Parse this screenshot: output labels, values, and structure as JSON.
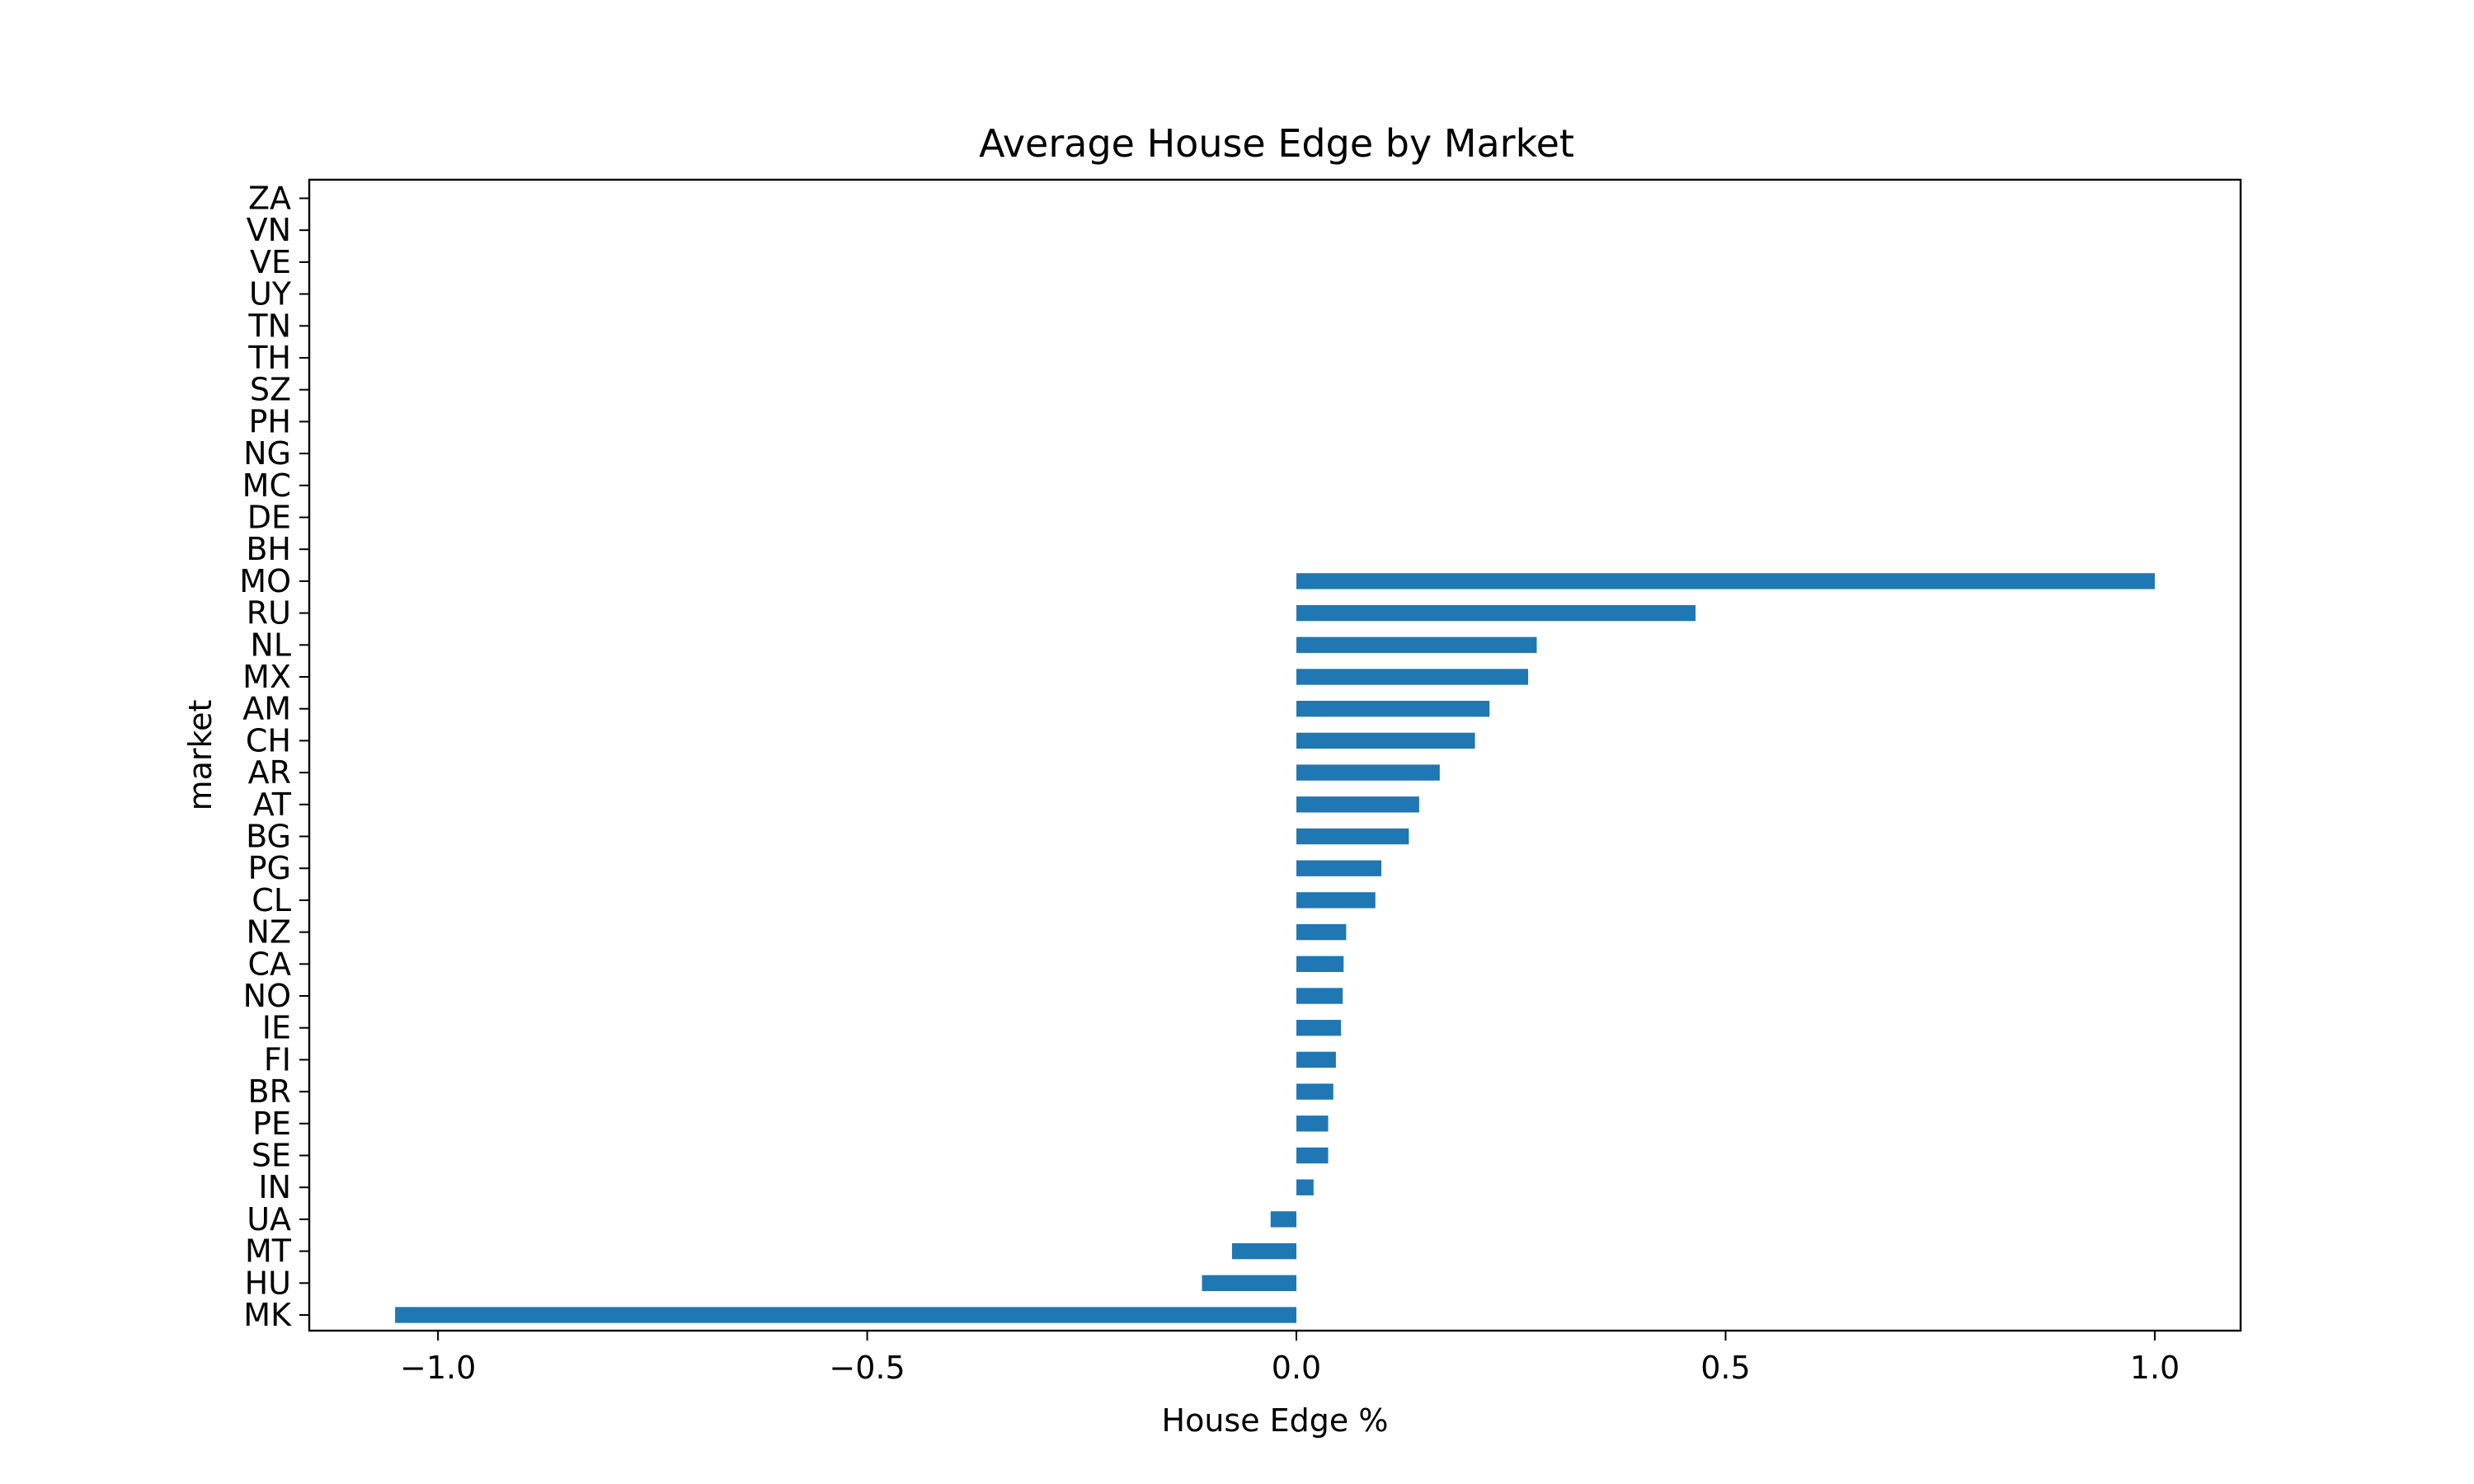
{
  "chart_data": {
    "type": "bar",
    "orientation": "horizontal",
    "title": "Average House Edge by Market",
    "xlabel": "House Edge %",
    "ylabel": "market",
    "xlim": [
      -1.15,
      1.1
    ],
    "xticks": [
      -1.0,
      -0.5,
      0.0,
      0.5,
      1.0
    ],
    "xtick_labels": [
      "−1.0",
      "−0.5",
      "0.0",
      "0.5",
      "1.0"
    ],
    "grid": false,
    "bar_color": "#1f77b4",
    "categories": [
      "MK",
      "HU",
      "MT",
      "UA",
      "IN",
      "SE",
      "PE",
      "BR",
      "FI",
      "IE",
      "NO",
      "CA",
      "NZ",
      "CL",
      "PG",
      "BG",
      "AT",
      "AR",
      "CH",
      "AM",
      "MX",
      "NL",
      "RU",
      "MO",
      "BH",
      "DE",
      "MC",
      "NG",
      "PH",
      "SZ",
      "TH",
      "TN",
      "UY",
      "VE",
      "VN",
      "ZA"
    ],
    "values": [
      -1.05,
      -0.11,
      -0.075,
      -0.03,
      0.02,
      0.037,
      0.037,
      0.043,
      0.046,
      0.052,
      0.054,
      0.055,
      0.058,
      0.092,
      0.099,
      0.131,
      0.143,
      0.167,
      0.208,
      0.225,
      0.27,
      0.28,
      0.465,
      1.0,
      0,
      0,
      0,
      0,
      0,
      0,
      0,
      0,
      0,
      0,
      0,
      0
    ]
  }
}
